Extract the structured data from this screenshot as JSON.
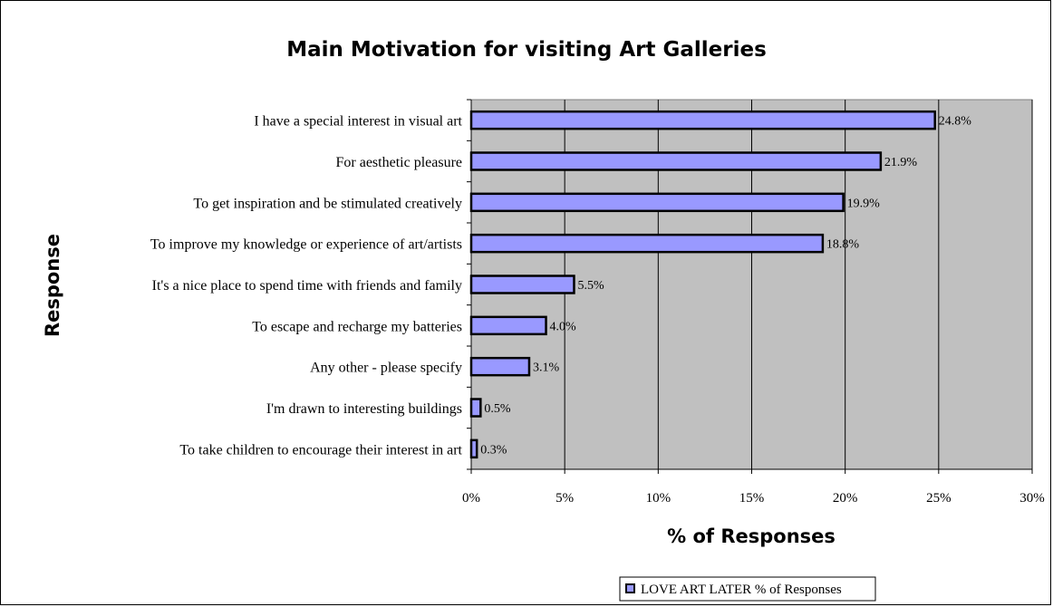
{
  "chart_data": {
    "type": "bar",
    "orientation": "horizontal",
    "title": "Main Motivation for visiting Art Galleries",
    "xlabel": "% of Responses",
    "ylabel": "Response",
    "xlim": [
      0,
      30
    ],
    "xticks": [
      "0%",
      "5%",
      "10%",
      "15%",
      "20%",
      "25%",
      "30%"
    ],
    "grid": "vertical",
    "legend_position": "bottom",
    "categories": [
      "I have a special interest in visual art",
      "For aesthetic pleasure",
      "To get inspiration and be stimulated creatively",
      "To improve my knowledge or experience of art/artists",
      "It's a nice place to spend time with friends and family",
      "To escape and recharge my batteries",
      "Any other - please specify",
      "I'm drawn to interesting buildings",
      "To take children to encourage their interest in art"
    ],
    "series": [
      {
        "name": "LOVE ART LATER % of Responses",
        "values": [
          24.8,
          21.9,
          19.9,
          18.8,
          5.5,
          4.0,
          3.1,
          0.5,
          0.3
        ],
        "labels": [
          "24.8%",
          "21.9%",
          "19.9%",
          "18.8%",
          "5.5%",
          "4.0%",
          "3.1%",
          "0.5%",
          "0.3%"
        ],
        "color": "#9999ff"
      }
    ],
    "plot_background": "#c0c0c0"
  }
}
